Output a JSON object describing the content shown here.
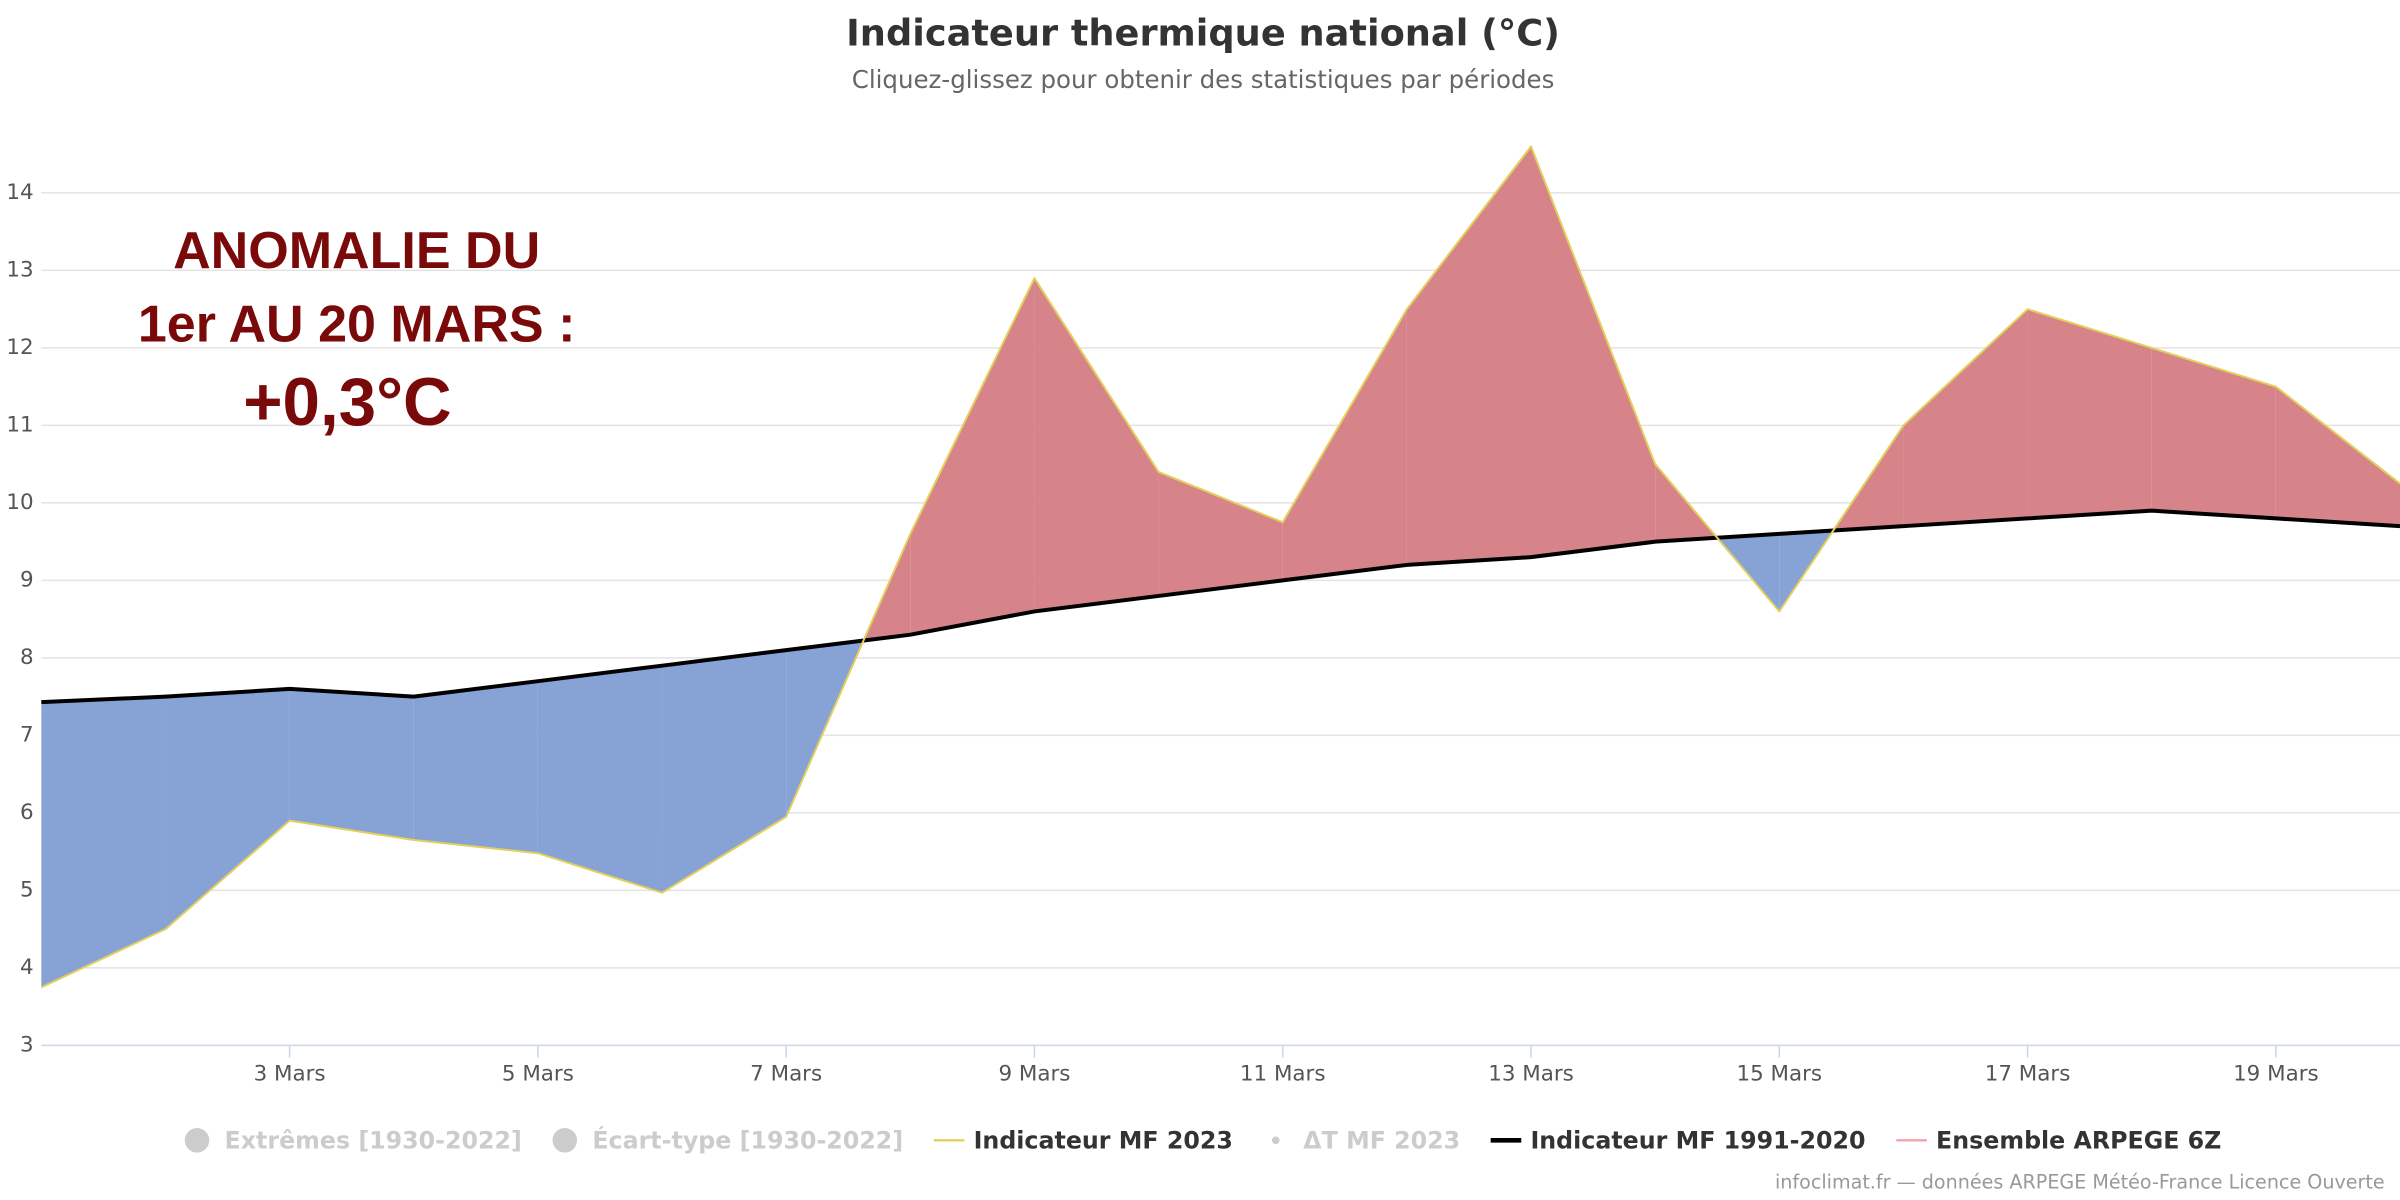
{
  "chart_data": {
    "type": "anomaly-area",
    "title": "Indicateur thermique national (°C)",
    "subtitle": "Cliquez-glissez pour obtenir des statistiques par périodes",
    "annotation": [
      "ANOMALIE DU",
      "1er AU 20 MARS :",
      "+0,3°C"
    ],
    "credit": "infoclimat.fr — données ARPEGE Météo-France Licence Ouverte",
    "x": [
      1,
      2,
      3,
      4,
      5,
      6,
      7,
      8,
      9,
      10,
      11,
      12,
      13,
      14,
      15,
      16,
      17,
      18,
      19,
      20
    ],
    "xlim": [
      1,
      20
    ],
    "xticks": [
      {
        "value": 3,
        "label": "3 Mars"
      },
      {
        "value": 5,
        "label": "5 Mars"
      },
      {
        "value": 7,
        "label": "7 Mars"
      },
      {
        "value": 9,
        "label": "9 Mars"
      },
      {
        "value": 11,
        "label": "11 Mars"
      },
      {
        "value": 13,
        "label": "13 Mars"
      },
      {
        "value": 15,
        "label": "15 Mars"
      },
      {
        "value": 17,
        "label": "17 Mars"
      },
      {
        "value": 19,
        "label": "19 Mars"
      }
    ],
    "ylim": [
      3,
      14.85
    ],
    "yticks": [
      3,
      4,
      5,
      6,
      7,
      8,
      9,
      10,
      11,
      12,
      13,
      14
    ],
    "grid": true,
    "positive_color": "#d6848a",
    "negative_color": "#87a3d6",
    "series": [
      {
        "name": "Extrêmes [1930-2022]",
        "color": "#cccccc",
        "symbol": "circle",
        "visible": false
      },
      {
        "name": "Écart-type [1930-2022]",
        "color": "#cccccc",
        "symbol": "circle",
        "visible": false
      },
      {
        "name": "Indicateur MF 2023",
        "color": "#e2cf5c",
        "symbol": "line",
        "visible": true,
        "values": [
          3.75,
          4.5,
          5.9,
          5.65,
          5.48,
          4.97,
          5.95,
          9.6,
          12.9,
          10.4,
          9.75,
          12.5,
          14.6,
          10.5,
          8.6,
          11.0,
          12.5,
          12.0,
          11.5,
          10.25
        ]
      },
      {
        "name": "ΔT MF 2023",
        "color": "#cccccc",
        "symbol": "dot",
        "visible": false
      },
      {
        "name": "Indicateur MF 1991-2020",
        "color": "#000000",
        "symbol": "line",
        "visible": true,
        "values": [
          7.43,
          7.5,
          7.6,
          7.5,
          7.7,
          7.9,
          8.1,
          8.3,
          8.6,
          8.8,
          9.0,
          9.2,
          9.3,
          9.5,
          9.6,
          9.7,
          9.8,
          9.9,
          9.8,
          9.7
        ]
      },
      {
        "name": "Ensemble ARPEGE 6Z",
        "color": "#f4a3ad",
        "symbol": "line",
        "visible": true
      }
    ]
  }
}
